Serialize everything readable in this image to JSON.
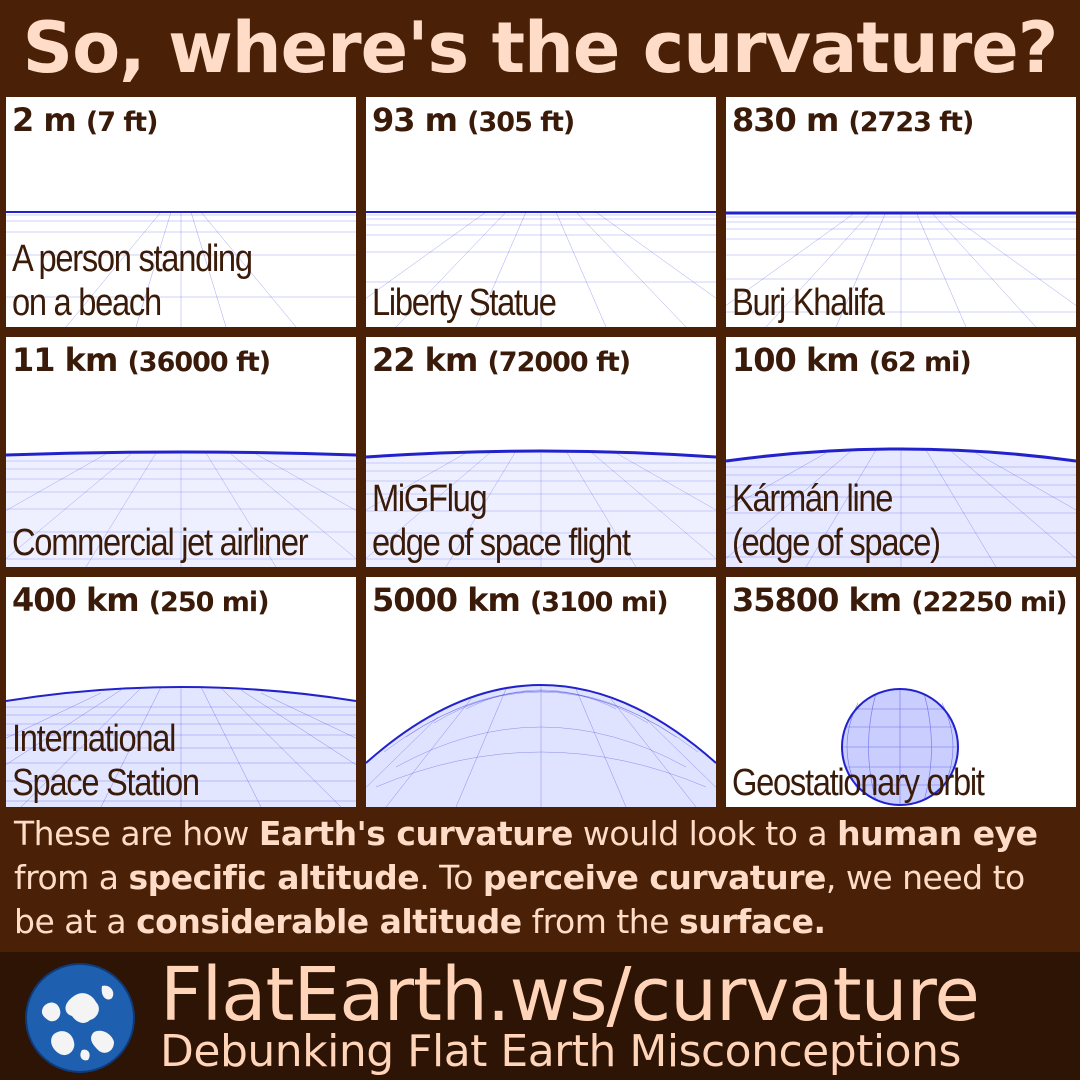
{
  "title": "So, where's the curvature?",
  "panels": [
    {
      "alt": "2 m",
      "alt_sec": "(7 ft)",
      "label": "A person standing\non a beach"
    },
    {
      "alt": "93 m",
      "alt_sec": "(305 ft)",
      "label": "Liberty Statue"
    },
    {
      "alt": "830 m",
      "alt_sec": "(2723 ft)",
      "label": "Burj Khalifa"
    },
    {
      "alt": "11 km",
      "alt_sec": "(36000 ft)",
      "label": "Commercial jet airliner"
    },
    {
      "alt": "22 km",
      "alt_sec": "(72000 ft)",
      "label": "MiGFlug\nedge of space flight"
    },
    {
      "alt": "100 km",
      "alt_sec": "(62 mi)",
      "label": "Kármán line\n(edge of space)"
    },
    {
      "alt": "400 km",
      "alt_sec": "(250 mi)",
      "label": "International\nSpace Station"
    },
    {
      "alt": "5000 km",
      "alt_sec": "(3100 mi)",
      "label": ""
    },
    {
      "alt": "35800 km",
      "alt_sec": "(22250 mi)",
      "label": "Geostationary orbit"
    }
  ],
  "caption": {
    "p1": "These are how ",
    "b1": "Earth's curvature",
    "p2": " would look to a ",
    "b2": "human eye",
    "p3": " from a ",
    "b3": "specific altitude",
    "p4": ". To ",
    "b4": "perceive curvature",
    "p5": ", we need to be at a ",
    "b5": "considerable altitude",
    "p6": " from the ",
    "b6": "surface."
  },
  "footer": {
    "site": "FlatEarth.ws/curvature",
    "tagline": "Debunking Flat Earth Misconceptions"
  },
  "colors": {
    "background": "#4a2106",
    "footer_background": "#2d1404",
    "title_text": "#ffdcc8",
    "panel_text": "#3a1a08",
    "grid_line": "#3333dd"
  }
}
